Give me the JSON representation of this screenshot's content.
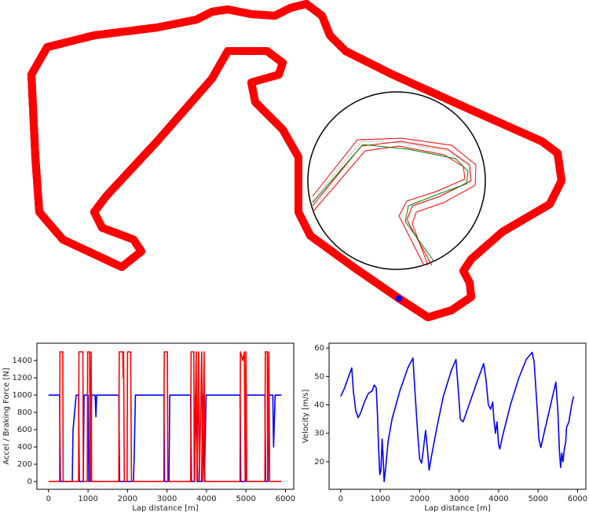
{
  "chart_data": [
    {
      "type": "line",
      "xlabel": "Lap distance [m]",
      "ylabel": "Accel / Braking Force [N]",
      "xlim": [
        -295,
        6210
      ],
      "ylim": [
        -90,
        1600
      ],
      "xticks": [
        0,
        1000,
        2000,
        3000,
        4000,
        5000,
        6000
      ],
      "yticks": [
        0,
        200,
        400,
        600,
        800,
        1000,
        1200,
        1400
      ],
      "series": [
        {
          "color": "#0000ff",
          "x": [
            0,
            280,
            300,
            600,
            620,
            640,
            700,
            760,
            780,
            880,
            900,
            1000,
            1020,
            1060,
            1090,
            1180,
            1200,
            1220,
            1780,
            1800,
            2150,
            2170,
            2200,
            2920,
            2940,
            3050,
            3070,
            3600,
            3620,
            3700,
            3720,
            3780,
            3880,
            3900,
            3950,
            3990,
            4850,
            4870,
            4990,
            5010,
            5480,
            5500,
            5560,
            5580,
            5680,
            5700,
            5740,
            5900
          ],
          "values": [
            1000,
            1000,
            0,
            0,
            600,
            700,
            1000,
            1000,
            0,
            0,
            1000,
            1000,
            0,
            0,
            1000,
            1000,
            750,
            1000,
            1000,
            0,
            0,
            300,
            1000,
            1000,
            0,
            0,
            1000,
            1000,
            0,
            0,
            1000,
            0,
            0,
            1000,
            0,
            1000,
            1000,
            0,
            0,
            1000,
            1000,
            0,
            0,
            1000,
            1000,
            400,
            1000,
            1000
          ]
        },
        {
          "color": "#ff0000",
          "x": [
            0,
            280,
            290,
            360,
            370,
            760,
            770,
            870,
            880,
            980,
            990,
            1040,
            1050,
            1080,
            1090,
            1780,
            1790,
            1880,
            1890,
            1900,
            1920,
            1990,
            2000,
            2080,
            2100,
            2920,
            2930,
            3010,
            3020,
            3600,
            3610,
            3680,
            3690,
            3740,
            3760,
            3800,
            3820,
            3880,
            3900,
            3940,
            3960,
            4850,
            4860,
            4920,
            4960,
            4980,
            5000,
            5020,
            5480,
            5490,
            5540,
            5550,
            5580,
            5600,
            5900
          ],
          "values": [
            0,
            0,
            1500,
            1500,
            0,
            0,
            1500,
            1500,
            0,
            0,
            1500,
            1500,
            0,
            1500,
            0,
            0,
            1500,
            1500,
            1200,
            1500,
            0,
            0,
            1500,
            1500,
            0,
            0,
            1500,
            1500,
            0,
            0,
            1500,
            1500,
            0,
            1500,
            0,
            1500,
            0,
            1500,
            0,
            1500,
            0,
            0,
            1500,
            1400,
            1500,
            0,
            1500,
            0,
            0,
            1500,
            1500,
            0,
            1500,
            0,
            0
          ]
        }
      ]
    },
    {
      "type": "line",
      "xlabel": "Lap distance [m]",
      "ylabel": "Velocity [m/s]",
      "xlim": [
        -295,
        6210
      ],
      "ylim": [
        10.3,
        61.7
      ],
      "xticks": [
        0,
        1000,
        2000,
        3000,
        4000,
        5000,
        6000
      ],
      "yticks": [
        20,
        30,
        40,
        50,
        60
      ],
      "series": [
        {
          "color": "#0000ff",
          "x": [
            0,
            100,
            200,
            280,
            320,
            380,
            440,
            500,
            600,
            700,
            800,
            850,
            900,
            930,
            960,
            990,
            1020,
            1050,
            1080,
            1100,
            1140,
            1200,
            1300,
            1500,
            1700,
            1830,
            1880,
            1950,
            2000,
            2050,
            2100,
            2150,
            2200,
            2240,
            2300,
            2450,
            2600,
            2800,
            2920,
            2980,
            3030,
            3100,
            3250,
            3450,
            3620,
            3680,
            3740,
            3800,
            3850,
            3880,
            3920,
            3960,
            4000,
            4030,
            4100,
            4300,
            4500,
            4700,
            4850,
            4900,
            4980,
            5020,
            5070,
            5150,
            5300,
            5450,
            5500,
            5540,
            5570,
            5600,
            5630,
            5660,
            5700,
            5720,
            5780,
            5850,
            5900
          ],
          "values": [
            43,
            46,
            50,
            53,
            45,
            38,
            35.5,
            37,
            41,
            44,
            45,
            47,
            46,
            37,
            25,
            15.5,
            17,
            28,
            20,
            13,
            18,
            27,
            35,
            45,
            53,
            56.5,
            45,
            30,
            21,
            19.5,
            25,
            31,
            24,
            17,
            22,
            33,
            43,
            52,
            56,
            45,
            35,
            34,
            40,
            48,
            54.5,
            49,
            40,
            38.5,
            41,
            35,
            30,
            34,
            26,
            24.5,
            29,
            40,
            49,
            56,
            58.5,
            55,
            38,
            28,
            25,
            30,
            39,
            48,
            38,
            24,
            18,
            23,
            20,
            24,
            27,
            32,
            34,
            40,
            43
          ]
        }
      ]
    }
  ]
}
